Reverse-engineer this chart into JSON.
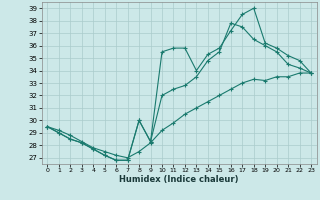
{
  "xlabel": "Humidex (Indice chaleur)",
  "bg_color": "#cce8e8",
  "line_color": "#1a7a6e",
  "grid_color": "#aacccc",
  "xlim": [
    -0.5,
    23.5
  ],
  "ylim": [
    26.5,
    39.5
  ],
  "xticks": [
    0,
    1,
    2,
    3,
    4,
    5,
    6,
    7,
    8,
    9,
    10,
    11,
    12,
    13,
    14,
    15,
    16,
    17,
    18,
    19,
    20,
    21,
    22,
    23
  ],
  "yticks": [
    27,
    28,
    29,
    30,
    31,
    32,
    33,
    34,
    35,
    36,
    37,
    38,
    39
  ],
  "lines": [
    {
      "x": [
        0,
        1,
        2,
        3,
        4,
        5,
        6,
        7,
        8,
        9,
        10,
        11,
        12,
        13,
        14,
        15,
        16,
        17,
        18,
        19,
        20,
        21,
        22,
        23
      ],
      "y": [
        29.5,
        29.0,
        28.5,
        28.2,
        27.7,
        27.2,
        26.8,
        26.8,
        30.0,
        28.3,
        35.5,
        35.8,
        35.8,
        34.0,
        35.3,
        35.8,
        37.2,
        38.5,
        39.0,
        36.2,
        35.8,
        35.2,
        34.8,
        33.8
      ]
    },
    {
      "x": [
        0,
        1,
        2,
        3,
        4,
        5,
        6,
        7,
        8,
        9,
        10,
        11,
        12,
        13,
        14,
        15,
        16,
        17,
        18,
        19,
        20,
        21,
        22,
        23
      ],
      "y": [
        29.5,
        29.0,
        28.5,
        28.2,
        27.7,
        27.2,
        26.8,
        26.8,
        30.0,
        28.3,
        32.0,
        32.5,
        32.8,
        33.5,
        34.8,
        35.5,
        37.8,
        37.5,
        36.5,
        36.0,
        35.5,
        34.5,
        34.2,
        33.8
      ]
    },
    {
      "x": [
        0,
        1,
        2,
        3,
        4,
        5,
        6,
        7,
        8,
        9,
        10,
        11,
        12,
        13,
        14,
        15,
        16,
        17,
        18,
        19,
        20,
        21,
        22,
        23
      ],
      "y": [
        29.5,
        29.2,
        28.8,
        28.3,
        27.8,
        27.5,
        27.2,
        27.0,
        27.5,
        28.2,
        29.2,
        29.8,
        30.5,
        31.0,
        31.5,
        32.0,
        32.5,
        33.0,
        33.3,
        33.2,
        33.5,
        33.5,
        33.8,
        33.8
      ]
    }
  ]
}
